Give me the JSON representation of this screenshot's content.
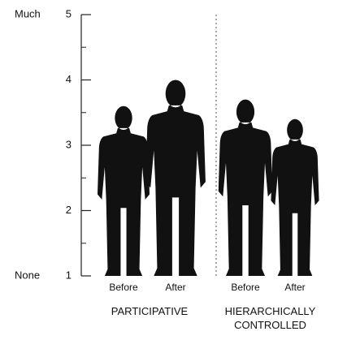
{
  "chart_data": {
    "type": "pictograph",
    "y_high_label": "Much",
    "y_low_label": "None",
    "categories": [
      "PARTICIPATIVE",
      "HIERARCHICALLY CONTROLLED"
    ],
    "series": [
      {
        "name": "Before",
        "color": "#111111",
        "values": [
          3.6,
          3.7
        ]
      },
      {
        "name": "After",
        "color": "#111111",
        "values": [
          4.0,
          3.4
        ]
      }
    ],
    "ylim": [
      1,
      5
    ],
    "yticks": [
      1,
      2,
      3,
      4,
      5
    ],
    "yminorticks": [
      1.5,
      2.5,
      3.5,
      4.5
    ]
  }
}
